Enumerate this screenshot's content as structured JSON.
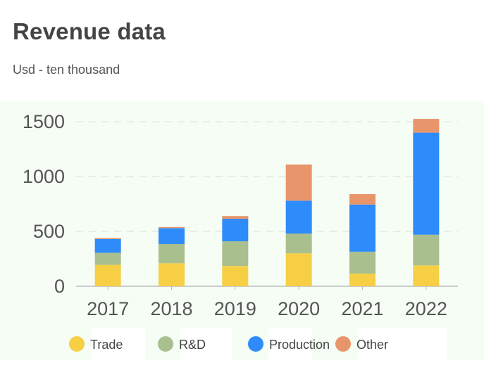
{
  "header": {
    "title": "Revenue data",
    "subtitle": "Usd - ten thousand"
  },
  "colors": {
    "Trade": "#f7cf45",
    "R&D": "#a9bf8e",
    "Production": "#2e8bfa",
    "Other": "#e8956b",
    "panel": "#f5fdf5",
    "grid": "#e3e8e3",
    "axis": "#bbbbbb",
    "tick_text": "#555555"
  },
  "chart_data": {
    "type": "bar",
    "stacked": true,
    "title": "Revenue data",
    "subtitle": "Usd - ten thousand",
    "xlabel": "",
    "ylabel": "",
    "categories": [
      "2017",
      "2018",
      "2019",
      "2020",
      "2021",
      "2022"
    ],
    "series": [
      {
        "name": "Trade",
        "values": [
          195,
          210,
          185,
          300,
          115,
          190
        ]
      },
      {
        "name": "R&D",
        "values": [
          110,
          175,
          225,
          180,
          200,
          280
        ]
      },
      {
        "name": "Production",
        "values": [
          125,
          145,
          205,
          300,
          430,
          930
        ]
      },
      {
        "name": "Other",
        "values": [
          10,
          10,
          25,
          330,
          95,
          125
        ]
      }
    ],
    "ylim": [
      0,
      1500
    ],
    "yticks": [
      "0",
      "500",
      "1000",
      "1500"
    ],
    "grid": true,
    "legend": "bottom"
  }
}
